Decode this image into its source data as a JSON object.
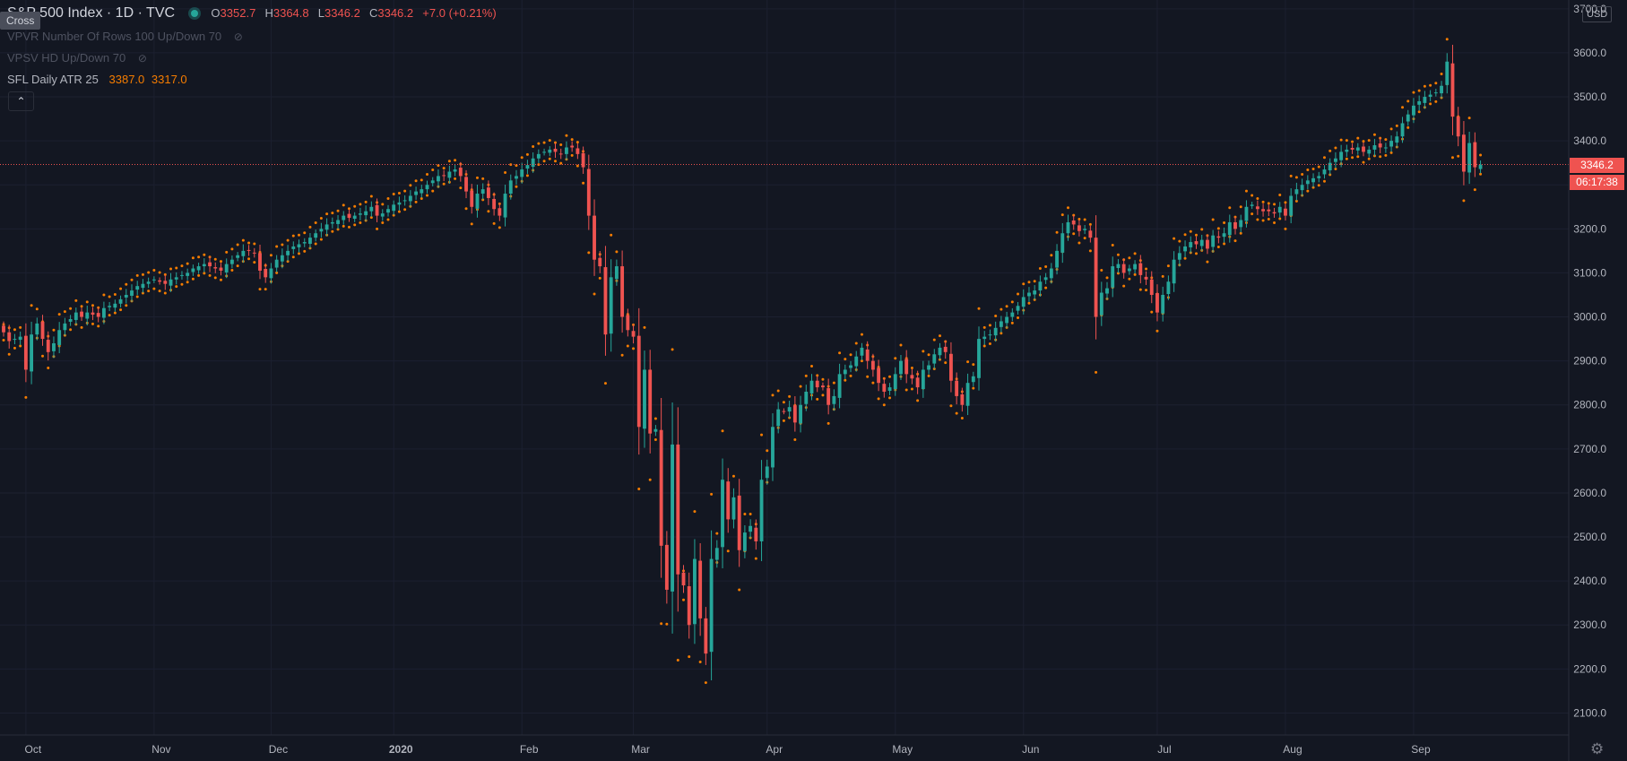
{
  "legend": {
    "symbol": "S&P 500 Index · 1D · TVC",
    "o_label": "O",
    "o": "3352.7",
    "h_label": "H",
    "h": "3364.8",
    "l_label": "L",
    "l": "3346.2",
    "c_label": "C",
    "c": "3346.2",
    "change": "+7.0 (+0.21%)"
  },
  "cross_tag": "Cross",
  "indicators": {
    "vpvr": "VPVR Number Of Rows 100 Up/Down 70",
    "vpsv": "VPSV HD Up/Down 70",
    "sfl_name": "SFL Daily ATR 25",
    "sfl_v1": "3387.0",
    "sfl_v2": "3317.0"
  },
  "currency": "USD",
  "last_price_label": "3346.2",
  "countdown": "06:17:38",
  "icons": {
    "eye": "eye-off-icon",
    "gear": "gear-icon",
    "collapse": "chevron-up-icon"
  },
  "colors": {
    "up": "#26a69a",
    "down": "#ef5350",
    "stops": "#f57c00",
    "background": "#131722"
  },
  "chart_data": {
    "type": "candlestick",
    "title": "S&P 500 Index · 1D · TVC",
    "ylim": [
      2050,
      3720
    ],
    "y_ticks": [
      "2100.0",
      "2200.0",
      "2300.0",
      "2400.0",
      "2500.0",
      "2600.0",
      "2700.0",
      "2800.0",
      "2900.0",
      "3000.0",
      "3100.0",
      "3200.0",
      "3300.0",
      "3400.0",
      "3500.0",
      "3600.0",
      "3700.0"
    ],
    "x_ticks": [
      {
        "label": "Oct",
        "t": 4
      },
      {
        "label": "Nov",
        "t": 27
      },
      {
        "label": "Dec",
        "t": 48
      },
      {
        "label": "2020",
        "t": 70
      },
      {
        "label": "Feb",
        "t": 93
      },
      {
        "label": "Mar",
        "t": 113
      },
      {
        "label": "Apr",
        "t": 137
      },
      {
        "label": "May",
        "t": 160
      },
      {
        "label": "Jun",
        "t": 183
      },
      {
        "label": "Jul",
        "t": 207
      },
      {
        "label": "Aug",
        "t": 230
      },
      {
        "label": "Sep",
        "t": 253
      }
    ],
    "last_price": 3346.2,
    "close": [
      2965,
      2945,
      2950,
      2955,
      2880,
      2960,
      2985,
      2950,
      2920,
      2940,
      2970,
      2985,
      2995,
      3010,
      3000,
      3010,
      3005,
      3000,
      3020,
      3025,
      3030,
      3040,
      3050,
      3060,
      3070,
      3075,
      3080,
      3085,
      3080,
      3075,
      3085,
      3090,
      3095,
      3100,
      3110,
      3115,
      3120,
      3115,
      3110,
      3105,
      3120,
      3130,
      3140,
      3150,
      3150,
      3145,
      3105,
      3090,
      3110,
      3130,
      3140,
      3150,
      3160,
      3165,
      3170,
      3180,
      3190,
      3200,
      3210,
      3215,
      3220,
      3230,
      3225,
      3230,
      3235,
      3240,
      3250,
      3230,
      3235,
      3245,
      3255,
      3260,
      3265,
      3275,
      3285,
      3290,
      3300,
      3310,
      3320,
      3320,
      3330,
      3335,
      3320,
      3285,
      3250,
      3280,
      3290,
      3270,
      3245,
      3230,
      3280,
      3310,
      3320,
      3335,
      3345,
      3360,
      3370,
      3375,
      3380,
      3375,
      3370,
      3385,
      3385,
      3370,
      3340,
      3230,
      3130,
      3115,
      2960,
      3090,
      3115,
      3000,
      2970,
      2955,
      2750,
      2880,
      2735,
      2745,
      2480,
      2380,
      2710,
      2415,
      2390,
      2300,
      2450,
      2315,
      2235,
      2450,
      2475,
      2630,
      2540,
      2590,
      2470,
      2510,
      2525,
      2490,
      2630,
      2660,
      2750,
      2790,
      2785,
      2795,
      2760,
      2800,
      2830,
      2855,
      2840,
      2840,
      2800,
      2820,
      2870,
      2880,
      2890,
      2910,
      2930,
      2900,
      2880,
      2850,
      2830,
      2840,
      2870,
      2900,
      2870,
      2860,
      2840,
      2880,
      2890,
      2915,
      2930,
      2920,
      2855,
      2820,
      2800,
      2850,
      2865,
      2950,
      2955,
      2960,
      2975,
      2990,
      3000,
      3010,
      3025,
      3045,
      3055,
      3060,
      3080,
      3090,
      3110,
      3150,
      3190,
      3215,
      3210,
      3195,
      3200,
      3180,
      3000,
      3055,
      3065,
      3115,
      3120,
      3100,
      3110,
      3120,
      3095,
      3085,
      3050,
      3010,
      3050,
      3080,
      3130,
      3145,
      3160,
      3170,
      3165,
      3175,
      3155,
      3185,
      3180,
      3190,
      3215,
      3200,
      3220,
      3250,
      3255,
      3245,
      3240,
      3240,
      3235,
      3250,
      3230,
      3275,
      3290,
      3300,
      3310,
      3315,
      3320,
      3335,
      3350,
      3360,
      3375,
      3380,
      3380,
      3385,
      3375,
      3380,
      3390,
      3385,
      3385,
      3400,
      3410,
      3440,
      3460,
      3480,
      3490,
      3500,
      3505,
      3510,
      3525,
      3580,
      3455,
      3410,
      3330,
      3395,
      3340,
      3346
    ]
  }
}
